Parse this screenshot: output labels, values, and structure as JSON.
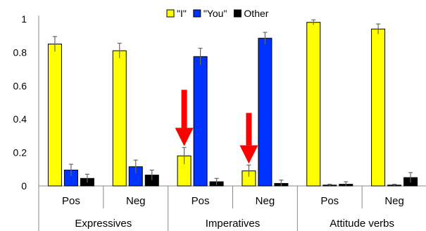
{
  "chart_data": {
    "type": "bar",
    "y_ticks": [
      "0",
      "0.2",
      "0.4",
      "0.6",
      "0.8",
      "1"
    ],
    "ylim": [
      0,
      1
    ],
    "grid": false,
    "legend_position": "top-center",
    "series": [
      {
        "name": "\"I\"",
        "color": "#ffff00",
        "values": [
          0.85,
          0.81,
          0.18,
          0.09,
          0.98,
          0.94
        ],
        "errors": [
          0.045,
          0.045,
          0.05,
          0.035,
          0.015,
          0.03
        ]
      },
      {
        "name": "\"You\"",
        "color": "#0033ff",
        "values": [
          0.095,
          0.115,
          0.775,
          0.885,
          0.005,
          0.005
        ],
        "errors": [
          0.035,
          0.04,
          0.05,
          0.035,
          0.005,
          0.005
        ]
      },
      {
        "name": "Other",
        "color": "#000000",
        "values": [
          0.045,
          0.065,
          0.025,
          0.015,
          0.01,
          0.05
        ],
        "errors": [
          0.025,
          0.03,
          0.02,
          0.02,
          0.015,
          0.03
        ]
      }
    ],
    "categories": [
      "Pos",
      "Neg",
      "Pos",
      "Neg",
      "Pos",
      "Neg"
    ],
    "groups": [
      "Expressives",
      "Imperatives",
      "Attitude verbs"
    ],
    "annotations": [
      {
        "type": "arrow",
        "color": "#ff0000",
        "target": "Imperatives Pos \"I\""
      },
      {
        "type": "arrow",
        "color": "#ff0000",
        "target": "Imperatives Neg \"I\""
      }
    ]
  }
}
